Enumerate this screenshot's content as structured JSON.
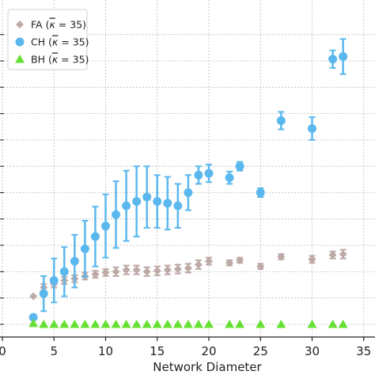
{
  "chart_data": {
    "type": "scatter",
    "title": "",
    "xlabel": "Network Diameter",
    "ylabel": "",
    "xlim": [
      0,
      35
    ],
    "ylim": [
      0,
      3
    ],
    "xticks": [
      0,
      5,
      10,
      15,
      20,
      25,
      30,
      35
    ],
    "grid": true,
    "legend_position": "top-left",
    "series": [
      {
        "name": "FA (κ̄ = 35)",
        "label_main": "FA (",
        "label_kappa": "κ",
        "label_rest": " = 35)",
        "marker": "diamond",
        "color": "#bdaaa6",
        "points": [
          {
            "x": 3,
            "y": 0.32,
            "e": 0.0
          },
          {
            "x": 4,
            "y": 0.42,
            "e": 0.04
          },
          {
            "x": 5,
            "y": 0.46,
            "e": 0.04
          },
          {
            "x": 6,
            "y": 0.5,
            "e": 0.04
          },
          {
            "x": 7,
            "y": 0.52,
            "e": 0.04
          },
          {
            "x": 8,
            "y": 0.55,
            "e": 0.04
          },
          {
            "x": 9,
            "y": 0.57,
            "e": 0.04
          },
          {
            "x": 10,
            "y": 0.59,
            "e": 0.04
          },
          {
            "x": 11,
            "y": 0.6,
            "e": 0.05
          },
          {
            "x": 12,
            "y": 0.62,
            "e": 0.05
          },
          {
            "x": 13,
            "y": 0.62,
            "e": 0.05
          },
          {
            "x": 14,
            "y": 0.6,
            "e": 0.05
          },
          {
            "x": 15,
            "y": 0.61,
            "e": 0.05
          },
          {
            "x": 16,
            "y": 0.62,
            "e": 0.05
          },
          {
            "x": 17,
            "y": 0.63,
            "e": 0.05
          },
          {
            "x": 18,
            "y": 0.64,
            "e": 0.05
          },
          {
            "x": 19,
            "y": 0.68,
            "e": 0.05
          },
          {
            "x": 20,
            "y": 0.72,
            "e": 0.04
          },
          {
            "x": 22,
            "y": 0.7,
            "e": 0.03
          },
          {
            "x": 23,
            "y": 0.73,
            "e": 0.03
          },
          {
            "x": 25,
            "y": 0.66,
            "e": 0.03
          },
          {
            "x": 27,
            "y": 0.77,
            "e": 0.03
          },
          {
            "x": 30,
            "y": 0.74,
            "e": 0.04
          },
          {
            "x": 32,
            "y": 0.79,
            "e": 0.04
          },
          {
            "x": 33,
            "y": 0.8,
            "e": 0.05
          }
        ]
      },
      {
        "name": "CH (κ̄ = 35)",
        "label_main": "CH (",
        "label_kappa": "κ",
        "label_rest": " = 35)",
        "marker": "circle",
        "color": "#5bb8ee",
        "points": [
          {
            "x": 3,
            "y": 0.08,
            "e": 0.02
          },
          {
            "x": 4,
            "y": 0.35,
            "e": 0.2
          },
          {
            "x": 5,
            "y": 0.5,
            "e": 0.25
          },
          {
            "x": 6,
            "y": 0.6,
            "e": 0.28
          },
          {
            "x": 7,
            "y": 0.72,
            "e": 0.3
          },
          {
            "x": 8,
            "y": 0.86,
            "e": 0.32
          },
          {
            "x": 9,
            "y": 1.0,
            "e": 0.34
          },
          {
            "x": 10,
            "y": 1.12,
            "e": 0.36
          },
          {
            "x": 11,
            "y": 1.25,
            "e": 0.38
          },
          {
            "x": 12,
            "y": 1.35,
            "e": 0.4
          },
          {
            "x": 13,
            "y": 1.4,
            "e": 0.4
          },
          {
            "x": 14,
            "y": 1.45,
            "e": 0.35
          },
          {
            "x": 15,
            "y": 1.4,
            "e": 0.3
          },
          {
            "x": 16,
            "y": 1.38,
            "e": 0.3
          },
          {
            "x": 17,
            "y": 1.35,
            "e": 0.25
          },
          {
            "x": 18,
            "y": 1.5,
            "e": 0.2
          },
          {
            "x": 19,
            "y": 1.7,
            "e": 0.1
          },
          {
            "x": 20,
            "y": 1.72,
            "e": 0.1
          },
          {
            "x": 22,
            "y": 1.67,
            "e": 0.07
          },
          {
            "x": 23,
            "y": 1.8,
            "e": 0.05
          },
          {
            "x": 25,
            "y": 1.5,
            "e": 0.05
          },
          {
            "x": 27,
            "y": 2.32,
            "e": 0.1
          },
          {
            "x": 30,
            "y": 2.23,
            "e": 0.13
          },
          {
            "x": 32,
            "y": 3.02,
            "e": 0.1
          },
          {
            "x": 33,
            "y": 3.05,
            "e": 0.2
          }
        ]
      },
      {
        "name": "BH (κ̄ = 35)",
        "label_main": "BH (",
        "label_kappa": "κ",
        "label_rest": " = 35)",
        "marker": "triangle",
        "color": "#66e033",
        "points": [
          {
            "x": 3,
            "y": 0.01,
            "e": 0
          },
          {
            "x": 4,
            "y": 0.0,
            "e": 0
          },
          {
            "x": 5,
            "y": 0.0,
            "e": 0
          },
          {
            "x": 6,
            "y": 0.0,
            "e": 0
          },
          {
            "x": 7,
            "y": 0.0,
            "e": 0
          },
          {
            "x": 8,
            "y": 0.0,
            "e": 0
          },
          {
            "x": 9,
            "y": 0.0,
            "e": 0
          },
          {
            "x": 10,
            "y": 0.0,
            "e": 0
          },
          {
            "x": 11,
            "y": 0.0,
            "e": 0
          },
          {
            "x": 12,
            "y": 0.0,
            "e": 0
          },
          {
            "x": 13,
            "y": 0.0,
            "e": 0
          },
          {
            "x": 14,
            "y": 0.0,
            "e": 0
          },
          {
            "x": 15,
            "y": 0.0,
            "e": 0
          },
          {
            "x": 16,
            "y": 0.0,
            "e": 0
          },
          {
            "x": 17,
            "y": 0.0,
            "e": 0
          },
          {
            "x": 18,
            "y": 0.0,
            "e": 0
          },
          {
            "x": 19,
            "y": 0.0,
            "e": 0
          },
          {
            "x": 20,
            "y": 0.0,
            "e": 0
          },
          {
            "x": 22,
            "y": 0.0,
            "e": 0
          },
          {
            "x": 23,
            "y": 0.0,
            "e": 0
          },
          {
            "x": 25,
            "y": 0.0,
            "e": 0
          },
          {
            "x": 27,
            "y": 0.0,
            "e": 0
          },
          {
            "x": 30,
            "y": 0.0,
            "e": 0
          },
          {
            "x": 32,
            "y": 0.0,
            "e": 0
          },
          {
            "x": 33,
            "y": 0.0,
            "e": 0
          }
        ]
      }
    ]
  }
}
